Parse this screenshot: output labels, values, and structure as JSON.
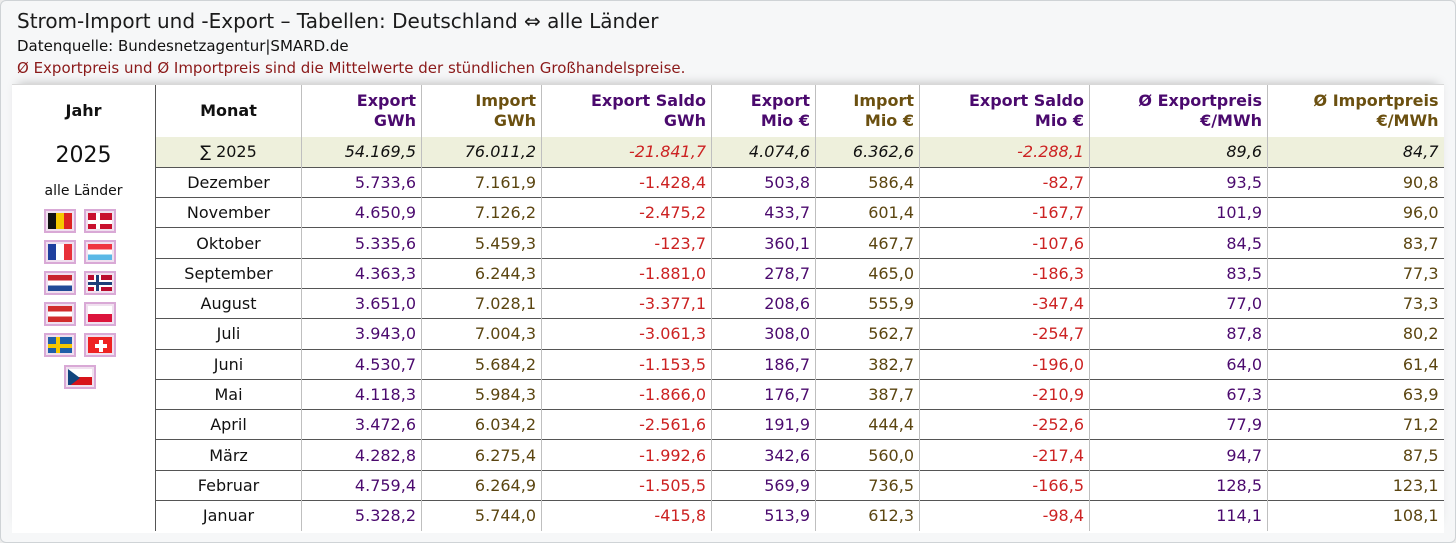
{
  "title": "Strom-Import und -Export – Tabellen: Deutschland ⇔ alle Länder",
  "source": "Datenquelle: Bundesnetzagentur|SMARD.de",
  "note": "Ø Exportpreis und Ø Importpreis sind die Mittelwerte der stündlichen Großhandelspreise.",
  "left": {
    "header": "Jahr",
    "year": "2025",
    "countries_label": "alle Länder",
    "flags": [
      "belgium-flag",
      "denmark-flag",
      "france-flag",
      "luxembourg-flag",
      "netherlands-flag",
      "norway-flag",
      "austria-flag",
      "poland-flag",
      "sweden-flag",
      "switzerland-flag",
      "czechia-flag"
    ]
  },
  "headers": {
    "monat": "Monat",
    "export_gwh": [
      "Export",
      "GWh"
    ],
    "import_gwh": [
      "Import",
      "GWh"
    ],
    "saldo_gwh": [
      "Export Saldo",
      "GWh"
    ],
    "export_eur": [
      "Export",
      "Mio €"
    ],
    "import_eur": [
      "Import",
      "Mio €"
    ],
    "saldo_eur": [
      "Export Saldo",
      "Mio €"
    ],
    "exportpreis": [
      "Ø Exportpreis",
      "€/MWh"
    ],
    "importpreis": [
      "Ø Importpreis",
      "€/MWh"
    ]
  },
  "rows": [
    [
      "∑ 2025",
      "54.169,5",
      "76.011,2",
      "-21.841,7",
      "4.074,6",
      "6.362,6",
      "-2.288,1",
      "89,6",
      "84,7"
    ],
    [
      "Dezember",
      "5.733,6",
      "7.161,9",
      "-1.428,4",
      "503,8",
      "586,4",
      "-82,7",
      "93,5",
      "90,8"
    ],
    [
      "November",
      "4.650,9",
      "7.126,2",
      "-2.475,2",
      "433,7",
      "601,4",
      "-167,7",
      "101,9",
      "96,0"
    ],
    [
      "Oktober",
      "5.335,6",
      "5.459,3",
      "-123,7",
      "360,1",
      "467,7",
      "-107,6",
      "84,5",
      "83,7"
    ],
    [
      "September",
      "4.363,3",
      "6.244,3",
      "-1.881,0",
      "278,7",
      "465,0",
      "-186,3",
      "83,5",
      "77,3"
    ],
    [
      "August",
      "3.651,0",
      "7.028,1",
      "-3.377,1",
      "208,6",
      "555,9",
      "-347,4",
      "77,0",
      "73,3"
    ],
    [
      "Juli",
      "3.943,0",
      "7.004,3",
      "-3.061,3",
      "308,0",
      "562,7",
      "-254,7",
      "87,8",
      "80,2"
    ],
    [
      "Juni",
      "4.530,7",
      "5.684,2",
      "-1.153,5",
      "186,7",
      "382,7",
      "-196,0",
      "64,0",
      "61,4"
    ],
    [
      "Mai",
      "4.118,3",
      "5.984,3",
      "-1.866,0",
      "176,7",
      "387,7",
      "-210,9",
      "67,3",
      "63,9"
    ],
    [
      "April",
      "3.472,6",
      "6.034,2",
      "-2.561,6",
      "191,9",
      "444,4",
      "-252,6",
      "77,9",
      "71,2"
    ],
    [
      "März",
      "4.282,8",
      "6.275,4",
      "-1.992,6",
      "342,6",
      "560,0",
      "-217,4",
      "94,7",
      "87,5"
    ],
    [
      "Februar",
      "4.759,4",
      "6.264,9",
      "-1.505,5",
      "569,9",
      "736,5",
      "-166,5",
      "128,5",
      "123,1"
    ],
    [
      "Januar",
      "5.328,2",
      "5.744,0",
      "-415,8",
      "513,9",
      "612,3",
      "-98,4",
      "114,1",
      "108,1"
    ]
  ]
}
